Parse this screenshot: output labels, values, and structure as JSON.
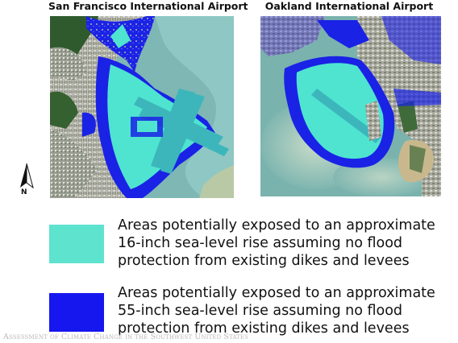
{
  "maps": {
    "sfo": {
      "title": "San Francisco International Airport"
    },
    "oakland": {
      "title": "Oakland International Airport"
    }
  },
  "north_arrow": {
    "label": "N",
    "icon": "north-arrow-icon"
  },
  "legend": [
    {
      "id": "rise-16",
      "color": "#5ee3cf",
      "lines": [
        "Areas potentially exposed to an approximate",
        "16-inch sea-level rise assuming no flood",
        "protection from existing dikes and levees"
      ]
    },
    {
      "id": "rise-55",
      "color": "#1616ee",
      "lines": [
        "Areas potentially exposed to an approximate",
        "55-inch sea-level rise assuming no flood",
        "protection from existing dikes and levees"
      ]
    }
  ],
  "credit": "Assessment of Climate Change in the Southwest United States",
  "colors": {
    "water": "#7fb7b4",
    "land": "#6f7560",
    "urban": "#a9aaa0",
    "vegetation": "#3f6a3a"
  }
}
